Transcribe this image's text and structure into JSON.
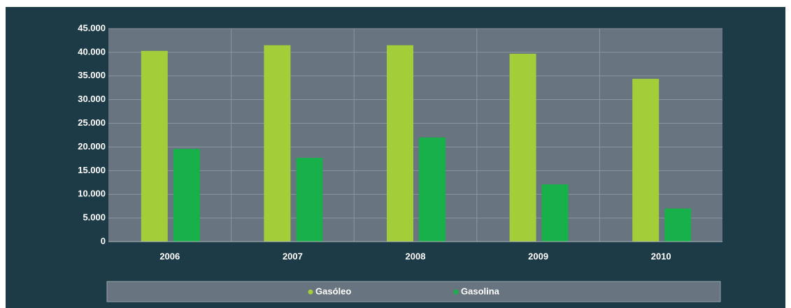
{
  "chart_data": {
    "type": "bar",
    "categories": [
      "2006",
      "2007",
      "2008",
      "2009",
      "2010"
    ],
    "series": [
      {
        "name": "Gasóleo",
        "color": "#a3cd39",
        "values": [
          40300,
          41500,
          41500,
          39700,
          34400
        ]
      },
      {
        "name": "Gasolina",
        "color": "#17b04a",
        "values": [
          19600,
          17700,
          22000,
          12100,
          7000
        ]
      }
    ],
    "ylim": [
      0,
      45000
    ],
    "yticks": [
      0,
      {
        "value": 5000,
        "label": "5.000"
      },
      {
        "value": 10000,
        "label": "10.000"
      },
      {
        "value": 15000,
        "label": "15.000"
      },
      {
        "value": 20000,
        "label": "20.000"
      },
      {
        "value": 25000,
        "label": "25.000"
      },
      {
        "value": 30000,
        "label": "30.000"
      },
      {
        "value": 35000,
        "label": "35.000"
      },
      {
        "value": 40000,
        "label": "40.000"
      },
      {
        "value": 45000,
        "label": "45.000"
      }
    ],
    "grid": true
  }
}
